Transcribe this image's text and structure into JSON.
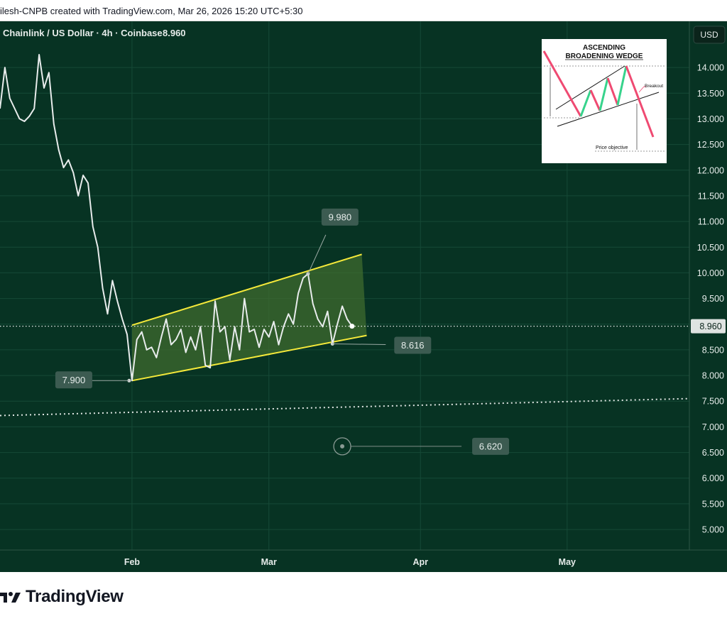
{
  "header": {
    "text": "ilesh-CNPB created with TradingView.com, Mar 26, 2026 15:20 UTC+5:30"
  },
  "legend": {
    "symbol": "Chainlink / US Dollar · 4h · Coinbase",
    "price": "8.960"
  },
  "currency_button": "USD",
  "footer": {
    "brand": "TradingView"
  },
  "inset": {
    "title_line1": "ASCENDING",
    "title_line2": "BROADENING WEDGE",
    "breakout_label": "Breakout",
    "price_objective_label": "Price objective"
  },
  "colors": {
    "background": "#073323",
    "price_line": "#e8ecec",
    "wedge_line": "#f5e93a",
    "wedge_fill": "#3f6b2f",
    "label_bg": "#3c5b51",
    "axis_text": "#e6ecea",
    "current_price_bg": "#dfe3e1",
    "inset_red": "#ef4a72",
    "inset_green": "#37d38c"
  },
  "chart_data": {
    "type": "line",
    "title": "Chainlink / US Dollar · 4h · Coinbase",
    "current_price": 8.96,
    "ylim": [
      4.6,
      14.9
    ],
    "yticks": [
      "14.000",
      "13.500",
      "13.000",
      "12.500",
      "12.000",
      "11.500",
      "11.000",
      "10.500",
      "10.000",
      "9.500",
      "9.000",
      "8.500",
      "8.000",
      "7.500",
      "7.000",
      "6.500",
      "6.000",
      "5.500",
      "5.000"
    ],
    "xticks": [
      {
        "label": "Feb",
        "date": "2026-02-01"
      },
      {
        "label": "Mar",
        "date": "2026-03-01"
      },
      {
        "label": "Apr",
        "date": "2026-04-01"
      },
      {
        "label": "May",
        "date": "2026-05-01"
      }
    ],
    "x_domain": [
      "2026-01-05",
      "2026-05-26"
    ],
    "series": [
      {
        "type": "price",
        "points": [
          [
            "2026-01-05",
            13.2
          ],
          [
            "2026-01-06",
            14.0
          ],
          [
            "2026-01-07",
            13.4
          ],
          [
            "2026-01-08",
            13.2
          ],
          [
            "2026-01-09",
            13.0
          ],
          [
            "2026-01-10",
            12.95
          ],
          [
            "2026-01-11",
            13.05
          ],
          [
            "2026-01-12",
            13.2
          ],
          [
            "2026-01-13",
            14.25
          ],
          [
            "2026-01-14",
            13.6
          ],
          [
            "2026-01-15",
            13.9
          ],
          [
            "2026-01-16",
            12.9
          ],
          [
            "2026-01-17",
            12.4
          ],
          [
            "2026-01-18",
            12.05
          ],
          [
            "2026-01-19",
            12.2
          ],
          [
            "2026-01-20",
            11.95
          ],
          [
            "2026-01-21",
            11.5
          ],
          [
            "2026-01-22",
            11.9
          ],
          [
            "2026-01-23",
            11.75
          ],
          [
            "2026-01-24",
            10.9
          ],
          [
            "2026-01-25",
            10.5
          ],
          [
            "2026-01-26",
            9.7
          ],
          [
            "2026-01-27",
            9.2
          ],
          [
            "2026-01-28",
            9.85
          ],
          [
            "2026-01-29",
            9.45
          ],
          [
            "2026-01-30",
            9.1
          ],
          [
            "2026-01-31",
            8.8
          ],
          [
            "2026-02-01",
            7.9
          ],
          [
            "2026-02-02",
            8.7
          ],
          [
            "2026-02-03",
            8.85
          ],
          [
            "2026-02-04",
            8.5
          ],
          [
            "2026-02-05",
            8.55
          ],
          [
            "2026-02-06",
            8.35
          ],
          [
            "2026-02-07",
            8.75
          ],
          [
            "2026-02-08",
            9.1
          ],
          [
            "2026-02-09",
            8.6
          ],
          [
            "2026-02-10",
            8.7
          ],
          [
            "2026-02-11",
            8.9
          ],
          [
            "2026-02-12",
            8.45
          ],
          [
            "2026-02-13",
            8.75
          ],
          [
            "2026-02-14",
            8.5
          ],
          [
            "2026-02-15",
            8.95
          ],
          [
            "2026-02-16",
            8.2
          ],
          [
            "2026-02-17",
            8.15
          ],
          [
            "2026-02-18",
            9.45
          ],
          [
            "2026-02-19",
            8.85
          ],
          [
            "2026-02-20",
            8.95
          ],
          [
            "2026-02-21",
            8.3
          ],
          [
            "2026-02-22",
            8.95
          ],
          [
            "2026-02-23",
            8.5
          ],
          [
            "2026-02-24",
            9.5
          ],
          [
            "2026-02-25",
            8.85
          ],
          [
            "2026-02-26",
            8.9
          ],
          [
            "2026-02-27",
            8.55
          ],
          [
            "2026-02-28",
            8.9
          ],
          [
            "2026-03-01",
            8.75
          ],
          [
            "2026-03-02",
            9.05
          ],
          [
            "2026-03-03",
            8.6
          ],
          [
            "2026-03-04",
            8.95
          ],
          [
            "2026-03-05",
            9.2
          ],
          [
            "2026-03-06",
            9.0
          ],
          [
            "2026-03-07",
            9.6
          ],
          [
            "2026-03-08",
            9.9
          ],
          [
            "2026-03-09",
            9.98
          ],
          [
            "2026-03-10",
            9.4
          ],
          [
            "2026-03-11",
            9.1
          ],
          [
            "2026-03-12",
            8.95
          ],
          [
            "2026-03-13",
            9.25
          ],
          [
            "2026-03-14",
            8.616
          ],
          [
            "2026-03-15",
            9.0
          ],
          [
            "2026-03-16",
            9.35
          ],
          [
            "2026-03-17",
            9.1
          ],
          [
            "2026-03-18",
            8.96
          ]
        ]
      }
    ],
    "annotations": [
      {
        "label": "9.980",
        "value": 9.98,
        "date": "2026-03-09"
      },
      {
        "label": "8.616",
        "value": 8.616,
        "date": "2026-03-14"
      },
      {
        "label": "7.900",
        "value": 7.9,
        "date": "2026-02-01"
      },
      {
        "label": "6.620",
        "value": 6.62,
        "date": "2026-03-16"
      }
    ],
    "wedge": {
      "upper": [
        [
          "2026-02-01",
          8.98
        ],
        [
          "2026-03-20",
          10.36
        ]
      ],
      "lower": [
        [
          "2026-02-01",
          7.9
        ],
        [
          "2026-03-21",
          8.78
        ]
      ]
    },
    "trendline": [
      [
        "2026-01-05",
        7.22
      ],
      [
        "2026-05-26",
        7.55
      ]
    ],
    "grid": true
  }
}
